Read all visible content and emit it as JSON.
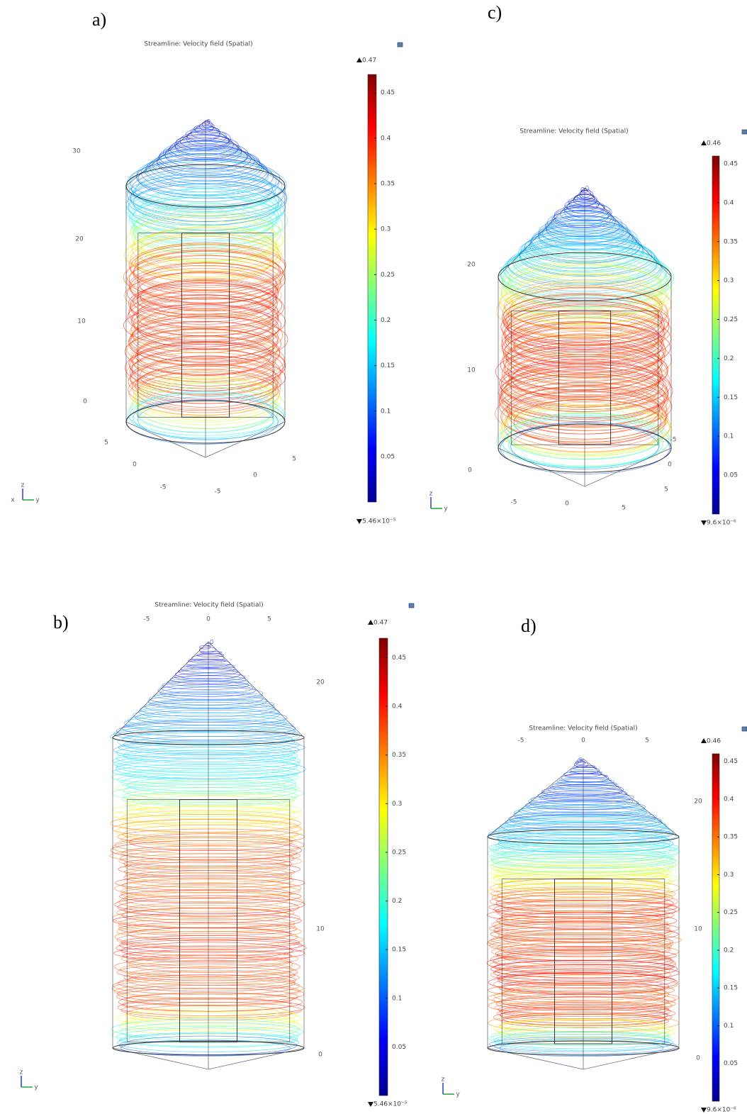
{
  "panels": [
    {
      "label": "a)",
      "title": "Streamline: Velocity field (Spatial)",
      "colorbar": {
        "max": 0.47,
        "min": {
          "value": 5.46e-05,
          "label": "5.46×10⁻⁵"
        },
        "ticks": [
          0.05,
          0.1,
          0.15,
          0.2,
          0.25,
          0.3,
          0.35,
          0.4,
          0.45
        ]
      },
      "axis_labels": [
        "30",
        "20",
        "10",
        "0",
        "5",
        "0",
        "-5",
        "5",
        "0",
        "-5"
      ],
      "triad": [
        "z",
        "y",
        "x"
      ]
    },
    {
      "label": "c)",
      "title": "Streamline: Velocity field (Spatial)",
      "colorbar": {
        "max": 0.46,
        "min": {
          "value": 9.6e-06,
          "label": "9.6×10⁻⁶"
        },
        "ticks": [
          0.05,
          0.1,
          0.15,
          0.2,
          0.25,
          0.3,
          0.35,
          0.4,
          0.45
        ]
      },
      "axis_labels": [
        "20",
        "10",
        "0",
        "-5",
        "0",
        "5",
        "-5",
        "0",
        "5"
      ],
      "triad": [
        "z",
        "y"
      ]
    },
    {
      "label": "b)",
      "title": "Streamline: Velocity field (Spatial)",
      "colorbar": {
        "max": 0.47,
        "min": {
          "value": 5.46e-05,
          "label": "5.46×10⁻⁵"
        },
        "ticks": [
          0.05,
          0.1,
          0.15,
          0.2,
          0.25,
          0.3,
          0.35,
          0.4,
          0.45
        ]
      },
      "axis_labels": [
        "-5",
        "0",
        "5",
        "20",
        "10",
        "0"
      ],
      "triad": [
        "z",
        "y"
      ]
    },
    {
      "label": "d)",
      "title": "Streamline: Velocity field (Spatial)",
      "colorbar": {
        "max": 0.46,
        "min": {
          "value": 9.6e-06,
          "label": "9.6×10⁻⁶"
        },
        "ticks": [
          0.05,
          0.1,
          0.15,
          0.2,
          0.25,
          0.3,
          0.35,
          0.4,
          0.45
        ]
      },
      "axis_labels": [
        "-5",
        "0",
        "5",
        "20",
        "10",
        "0"
      ],
      "triad": [
        "z",
        "y"
      ]
    }
  ]
}
